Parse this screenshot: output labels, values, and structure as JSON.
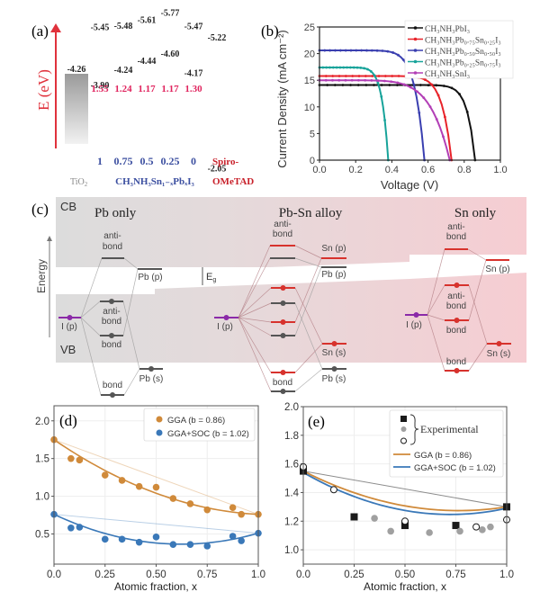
{
  "figure": {
    "panel_labels": {
      "a": "(a)",
      "b": "(b)",
      "c": "(c)",
      "d": "(d)",
      "e": "(e)"
    }
  },
  "chart_data": [
    {
      "panel": "a",
      "type": "bar",
      "title": "",
      "ylabel": "E (eV)",
      "xlabel": "",
      "units": "eV",
      "bars": [
        {
          "name": "TiO2",
          "top": -4.26,
          "bottom": null,
          "gap": null,
          "x_label": "",
          "color_top": "#9a9a9a",
          "color_bottom": "#f2f2f2"
        },
        {
          "name": "x=1",
          "top": -3.9,
          "bottom": -5.45,
          "gap": 1.55,
          "x_label": "1",
          "color_top": "#8ea6b6",
          "color_bottom": "#d5e9f6"
        },
        {
          "name": "x=0.75",
          "top": -4.24,
          "bottom": -5.48,
          "gap": 1.24,
          "x_label": "0.75",
          "color_top": "#b86f6f",
          "color_bottom": "#f7b8be"
        },
        {
          "name": "x=0.5",
          "top": -4.44,
          "bottom": -5.61,
          "gap": 1.17,
          "x_label": "0.5",
          "color_top": "#7e9a6a",
          "color_bottom": "#cfe6b8"
        },
        {
          "name": "x=0.25",
          "top": -4.6,
          "bottom": -5.77,
          "gap": 1.17,
          "x_label": "0.25",
          "color_top": "#6e4f86",
          "color_bottom": "#c9a6d9"
        },
        {
          "name": "x=0",
          "top": -4.17,
          "bottom": -5.47,
          "gap": 1.3,
          "x_label": "0",
          "color_top": "#b86e3a",
          "color_bottom": "#f6b98a"
        },
        {
          "name": "Spiro-OMeTAD",
          "top": -2.05,
          "bottom": -5.22,
          "gap": null,
          "x_label": "",
          "color_top": "#4fc6da",
          "color_bottom": "#1f8a96"
        }
      ],
      "top_labels": [
        "-4.26",
        "-3.90",
        "-4.24",
        "-4.44",
        "-4.60",
        "-4.17",
        "-2.05"
      ],
      "bottom_labels": [
        "",
        "-5.45",
        "-5.48",
        "-5.61",
        "-5.77",
        "-5.47",
        "-5.22"
      ],
      "gap_labels": [
        "",
        "1.55",
        "1.24",
        "1.17",
        "1.17",
        "1.30",
        ""
      ],
      "x_labels": [
        "1",
        "0.75",
        "0.5",
        "0.25",
        "0"
      ],
      "group_labels": {
        "tio2": "TiO",
        "tio2_sub": "2",
        "perovskite": "CH₃NH₃Sn₁₋ₓPbₓI₃",
        "spiro_line1": "Spiro-",
        "spiro_line2": "OMeTAD"
      },
      "colors": {
        "axis": "#e0323c",
        "gap_text": "#e0245e",
        "x_text": "#3c4fa0",
        "spiro_text": "#c8202a",
        "tio2_text": "#8a8a8a"
      }
    },
    {
      "panel": "b",
      "type": "line",
      "title": "",
      "xlabel": "Voltage (V)",
      "ylabel": "Current Density (mA cm⁻²)",
      "xlim": [
        0.0,
        1.0
      ],
      "ylim": [
        0,
        25
      ],
      "xticks": [
        "0.0",
        "0.2",
        "0.4",
        "0.6",
        "0.8",
        "1.0"
      ],
      "yticks": [
        "0",
        "5",
        "10",
        "15",
        "20",
        "25"
      ],
      "legend_position": "top-right",
      "series": [
        {
          "name": "CH₃NH₃PbI₃",
          "color": "#111111",
          "jsc": 14.1,
          "voc": 0.86,
          "knee": 0.62,
          "sharp": 6
        },
        {
          "name": "CH₃NH₃Pb₀.₇₅Sn₀.₂₅I₃",
          "color": "#e8232a",
          "jsc": 15.8,
          "voc": 0.73,
          "knee": 0.46,
          "sharp": 4
        },
        {
          "name": "CH₃NH₃Pb₀.₅₀Sn₀.₅₀I₃",
          "color": "#3a3fb0",
          "jsc": 20.6,
          "voc": 0.58,
          "knee": 0.32,
          "sharp": 3
        },
        {
          "name": "CH₃NH₃Pb₀.₂₅Sn₀.₇₅I₃",
          "color": "#17a39a",
          "jsc": 17.4,
          "voc": 0.38,
          "knee": 0.18,
          "sharp": 3
        },
        {
          "name": "CH₃NH₃SnI₃",
          "color": "#b23fb6",
          "jsc": 15.0,
          "voc": 0.72,
          "knee": 0.2,
          "sharp": 1.6
        }
      ]
    },
    {
      "panel": "c",
      "type": "diagram",
      "title": "",
      "region_labels": {
        "cb": "CB",
        "vb": "VB",
        "energy": "Energy",
        "eg": "E",
        "eg_sub": "g"
      },
      "sections": [
        {
          "title": "Pb only"
        },
        {
          "title": "Pb-Sn alloy"
        },
        {
          "title": "Sn only"
        }
      ],
      "level_labels": {
        "antibond_1": "anti-",
        "antibond_2": "bond",
        "bond": "bond",
        "ip": "I (p)",
        "pbp": "Pb (p)",
        "pbs": "Pb (s)",
        "snp": "Sn (p)",
        "sns": "Sn (s)"
      },
      "colors": {
        "pb": "#555555",
        "sn": "#d7322d",
        "i": "#8b2aa8"
      }
    },
    {
      "panel": "d",
      "type": "scatter",
      "title": "",
      "xlabel": "Atomic fraction, x",
      "ylabel": "",
      "xlim": [
        0.0,
        1.0
      ],
      "ylim": [
        0.1,
        2.2
      ],
      "xticks": [
        "0.0",
        "0.25",
        "0.50",
        "0.75",
        "1.0"
      ],
      "yticks": [
        "0.5",
        "1.0",
        "1.5",
        "2.0"
      ],
      "grid": true,
      "legend_position": "top-right",
      "series": [
        {
          "name": "GGA (b = 0.86)",
          "color": "#d08a3a",
          "x": [
            0.0,
            0.083,
            0.125,
            0.25,
            0.333,
            0.417,
            0.5,
            0.583,
            0.667,
            0.75,
            0.875,
            0.917,
            1.0
          ],
          "y": [
            1.75,
            1.5,
            1.48,
            1.28,
            1.21,
            1.13,
            1.12,
            0.97,
            0.9,
            0.82,
            0.85,
            0.76,
            0.76
          ],
          "fit_endpoints": [
            1.75,
            0.76
          ],
          "bowing": 0.86
        },
        {
          "name": "GGA+SOC (b = 1.02)",
          "color": "#3a78b8",
          "x": [
            0.0,
            0.083,
            0.125,
            0.25,
            0.333,
            0.417,
            0.5,
            0.583,
            0.667,
            0.75,
            0.875,
            0.917,
            1.0
          ],
          "y": [
            0.76,
            0.58,
            0.59,
            0.43,
            0.43,
            0.39,
            0.46,
            0.36,
            0.36,
            0.34,
            0.47,
            0.41,
            0.51
          ],
          "fit_endpoints": [
            0.76,
            0.51
          ],
          "bowing": 1.02
        }
      ]
    },
    {
      "panel": "e",
      "type": "scatter",
      "title": "",
      "xlabel": "Atomic fraction, x",
      "ylabel": "",
      "xlim": [
        0.0,
        1.0
      ],
      "ylim": [
        0.9,
        2.0
      ],
      "xticks": [
        "0.0",
        "0.25",
        "0.50",
        "0.75",
        "1.0"
      ],
      "yticks": [
        "1.0",
        "1.2",
        "1.4",
        "1.6",
        "1.8",
        "2.0"
      ],
      "grid": true,
      "legend_position": "top-right",
      "legend_bracket_label": "Experimental",
      "experimental": [
        {
          "marker": "square",
          "color": "#1a1a1a",
          "x": [
            0.0,
            0.25,
            0.5,
            0.75,
            1.0
          ],
          "y": [
            1.55,
            1.23,
            1.17,
            1.17,
            1.3
          ]
        },
        {
          "marker": "dot",
          "color": "#a0a0a0",
          "x": [
            0.35,
            0.43,
            0.62,
            0.77,
            0.88,
            0.92
          ],
          "y": [
            1.22,
            1.13,
            1.12,
            1.13,
            1.14,
            1.16
          ]
        },
        {
          "marker": "open-circle",
          "color": "#1a1a1a",
          "x": [
            0.0,
            0.15,
            0.5,
            0.85,
            1.0
          ],
          "y": [
            1.58,
            1.42,
            1.2,
            1.16,
            1.21
          ]
        }
      ],
      "series": [
        {
          "name": "GGA (b = 0.86)",
          "color": "#d08a3a",
          "fit_endpoints": [
            1.55,
            1.3
          ],
          "bowing": 0.86
        },
        {
          "name": "GGA+SOC (b = 1.02)",
          "color": "#3a78b8",
          "fit_endpoints": [
            1.54,
            1.29
          ],
          "bowing": 1.02
        }
      ],
      "linear_reference": {
        "color": "#8c8c8c",
        "y0": 1.55,
        "y1": 1.3
      }
    }
  ]
}
